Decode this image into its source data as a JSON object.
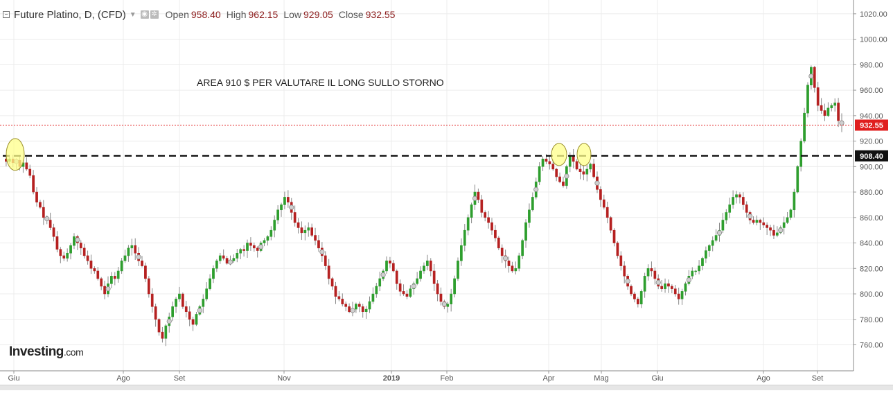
{
  "header": {
    "title": "Future Platino, D, (CFD)",
    "open_label": "Open",
    "open_value": "958.40",
    "high_label": "High",
    "high_value": "962.15",
    "low_label": "Low",
    "low_value": "929.05",
    "close_label": "Close",
    "close_value": "932.55"
  },
  "watermark": {
    "brand": "Investing",
    "suffix": ".com"
  },
  "colors": {
    "up": "#2e9e2e",
    "down": "#b52020",
    "grid": "#ececec",
    "support": "#111111",
    "last_price": "#e01e1e",
    "marker_fill": "#ffff8a"
  },
  "chart_data": {
    "type": "candlestick",
    "annotation": "AREA 910 $ PER VALUTARE IL LONG SULLO STORNO",
    "ylim": [
      750,
      1027
    ],
    "y_ticks": [
      "1020.00",
      "1000.00",
      "980.00",
      "960.00",
      "940.00",
      "920.00",
      "900.00",
      "880.00",
      "860.00",
      "840.00",
      "820.00",
      "800.00",
      "780.00",
      "760.00"
    ],
    "x_ticks": [
      "Giu",
      "Ago",
      "Set",
      "Nov",
      "2019",
      "Feb",
      "Apr",
      "Mag",
      "Giu",
      "Ago",
      "Set"
    ],
    "last_price": 932.55,
    "last_price_label": "932.55",
    "support_level": 908.4,
    "support_label": "908.40",
    "touch_markers": [
      "Giu 2018",
      "Apr 2019",
      "Apr 2019"
    ],
    "path": [
      906,
      904,
      906,
      903,
      905,
      900,
      903,
      898,
      893,
      880,
      872,
      868,
      860,
      858,
      852,
      845,
      835,
      830,
      828,
      832,
      838,
      845,
      840,
      836,
      830,
      826,
      820,
      818,
      812,
      806,
      800,
      808,
      814,
      812,
      818,
      826,
      830,
      836,
      838,
      832,
      826,
      822,
      812,
      800,
      790,
      780,
      770,
      765,
      775,
      782,
      790,
      796,
      800,
      790,
      786,
      780,
      776,
      784,
      790,
      796,
      804,
      812,
      820,
      826,
      830,
      828,
      824,
      826,
      828,
      832,
      835,
      834,
      840,
      838,
      836,
      834,
      840,
      842,
      845,
      850,
      858,
      866,
      870,
      876,
      872,
      864,
      856,
      852,
      848,
      850,
      852,
      846,
      842,
      836,
      830,
      822,
      812,
      806,
      798,
      796,
      792,
      790,
      786,
      788,
      792,
      790,
      786,
      788,
      794,
      800,
      806,
      812,
      818,
      826,
      824,
      818,
      808,
      802,
      800,
      798,
      804,
      808,
      812,
      818,
      822,
      826,
      818,
      808,
      800,
      794,
      790,
      792,
      800,
      812,
      826,
      838,
      850,
      860,
      870,
      880,
      874,
      864,
      860,
      856,
      850,
      844,
      836,
      830,
      826,
      822,
      818,
      820,
      830,
      842,
      856,
      866,
      876,
      888,
      900,
      906,
      904,
      902,
      898,
      892,
      888,
      885,
      900,
      908,
      904,
      898,
      896,
      894,
      898,
      902,
      892,
      882,
      874,
      868,
      860,
      850,
      840,
      830,
      822,
      814,
      806,
      800,
      796,
      792,
      802,
      814,
      820,
      818,
      812,
      806,
      804,
      808,
      806,
      804,
      800,
      796,
      802,
      808,
      814,
      818,
      818,
      822,
      828,
      834,
      838,
      842,
      846,
      850,
      858,
      864,
      870,
      876,
      878,
      876,
      870,
      864,
      858,
      856,
      858,
      856,
      854,
      852,
      850,
      846,
      848,
      852,
      856,
      860,
      866,
      880,
      900,
      920,
      942,
      964,
      978,
      962,
      948,
      944,
      940,
      946,
      948,
      950,
      936,
      932.55
    ]
  }
}
